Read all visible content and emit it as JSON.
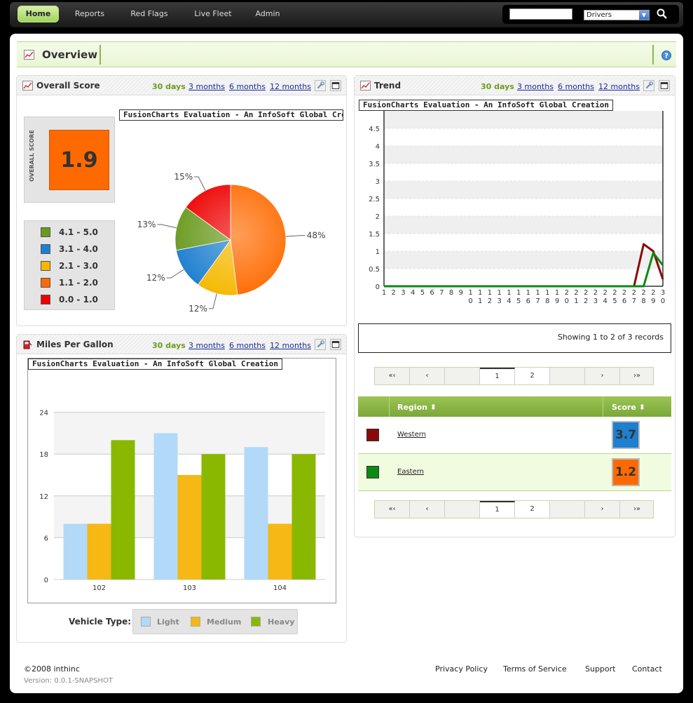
{
  "nav": {
    "items": [
      {
        "label": "Home",
        "active": true
      },
      {
        "label": "Reports",
        "active": false
      },
      {
        "label": "Red Flags",
        "active": false
      },
      {
        "label": "Live Fleet",
        "active": false
      },
      {
        "label": "Admin",
        "active": false
      }
    ],
    "search": {
      "value": "",
      "select_value": "Drivers",
      "button_icon": "magnifier-icon"
    }
  },
  "overview": {
    "title": "Overview",
    "help_icon": "help-icon"
  },
  "ranges": {
    "days30": "30 days",
    "months3": "3 months",
    "months6": "6 months",
    "months12": "12 months"
  },
  "overall_score": {
    "title": "Overall Score",
    "vertical_label": "OVERALL SCORE",
    "value": "1.9",
    "value_color": "#ff6a00",
    "chart_caption": "FusionCharts Evaluation - An InfoSoft Global Creation",
    "legend": [
      {
        "label": "4.1 - 5.0",
        "color": "#6a9a1f"
      },
      {
        "label": "3.1 - 4.0",
        "color": "#1e7fcf"
      },
      {
        "label": "2.1 - 3.0",
        "color": "#f5b800"
      },
      {
        "label": "1.1 - 2.0",
        "color": "#ff6a00"
      },
      {
        "label": "0.0 - 1.0",
        "color": "#ee0000"
      }
    ]
  },
  "trend": {
    "title": "Trend",
    "chart_caption": "FusionCharts Evaluation - An InfoSoft Global Creation",
    "records_text": "Showing 1 to 2 of 3 records",
    "pager": {
      "first": "«‹",
      "prev": "‹",
      "pages": [
        "1",
        "2"
      ],
      "next": "›",
      "last": "›»"
    },
    "table": {
      "columns": [
        "Region ⬍",
        "Score ⬍"
      ],
      "rows": [
        {
          "region": "Western",
          "color": "#8a0a0a",
          "score": "3.7",
          "score_color": "#1e7fcf"
        },
        {
          "region": "Eastern",
          "color": "#0a8a14",
          "score": "1.2",
          "score_color": "#ff6a00"
        }
      ]
    }
  },
  "mpg": {
    "title": "Miles Per Gallon",
    "chart_caption": "FusionCharts Evaluation - An InfoSoft Global Creation",
    "legend_title": "Vehicle Type:",
    "legend": [
      {
        "label": "Light",
        "color": "#b3d9f9"
      },
      {
        "label": "Medium",
        "color": "#f5b814"
      },
      {
        "label": "Heavy",
        "color": "#8ab800"
      }
    ]
  },
  "chart_data": [
    {
      "type": "pie",
      "title": "FusionCharts Evaluation - An InfoSoft Global Creation",
      "slices": [
        {
          "label": "48%",
          "value": 48,
          "color": "#ff6a00"
        },
        {
          "label": "12%",
          "value": 12,
          "color": "#f5b800"
        },
        {
          "label": "12%",
          "value": 12,
          "color": "#1e7fcf"
        },
        {
          "label": "13%",
          "value": 13,
          "color": "#6a9a1f"
        },
        {
          "label": "15%",
          "value": 15,
          "color": "#ee0000"
        }
      ]
    },
    {
      "type": "line",
      "title": "FusionCharts Evaluation - An InfoSoft Global Creation",
      "x": [
        1,
        2,
        3,
        4,
        5,
        6,
        7,
        8,
        9,
        10,
        11,
        12,
        13,
        14,
        15,
        16,
        17,
        18,
        19,
        20,
        21,
        22,
        23,
        24,
        25,
        26,
        27,
        28,
        29,
        30
      ],
      "ylim": [
        0,
        5
      ],
      "yticks": [
        0,
        0.5,
        1,
        1.5,
        2,
        2.5,
        3,
        3.5,
        4,
        4.5
      ],
      "series": [
        {
          "color": "#8a0a0a",
          "values": [
            0,
            0,
            0,
            0,
            0,
            0,
            0,
            0,
            0,
            0,
            0,
            0,
            0,
            0,
            0,
            0,
            0,
            0,
            0,
            0,
            0,
            0,
            0,
            0,
            0,
            0,
            0,
            1.2,
            1.0,
            0.2
          ]
        },
        {
          "color": "#0a8a14",
          "values": [
            0,
            0,
            0,
            0,
            0,
            0,
            0,
            0,
            0,
            0,
            0,
            0,
            0,
            0,
            0,
            0,
            0,
            0,
            0,
            0,
            0,
            0,
            0,
            0,
            0,
            0,
            0,
            0,
            0.95,
            0.6
          ]
        }
      ]
    },
    {
      "type": "bar",
      "title": "FusionCharts Evaluation - An InfoSoft Global Creation",
      "categories": [
        "102",
        "103",
        "104"
      ],
      "ylim": [
        0,
        30
      ],
      "yticks": [
        0,
        6,
        12,
        18,
        24
      ],
      "series": [
        {
          "name": "Light",
          "color": "#b3d9f9",
          "values": [
            8,
            21,
            19
          ]
        },
        {
          "name": "Medium",
          "color": "#f5b814",
          "values": [
            8,
            15,
            8
          ]
        },
        {
          "name": "Heavy",
          "color": "#8ab800",
          "values": [
            20,
            18,
            18
          ]
        }
      ]
    }
  ],
  "footer": {
    "copyright": "©2008 inthinc",
    "version": "Version: 0.0.1-SNAPSHOT",
    "links": [
      "Privacy Policy",
      "Terms of Service",
      "Support",
      "Contact"
    ]
  }
}
